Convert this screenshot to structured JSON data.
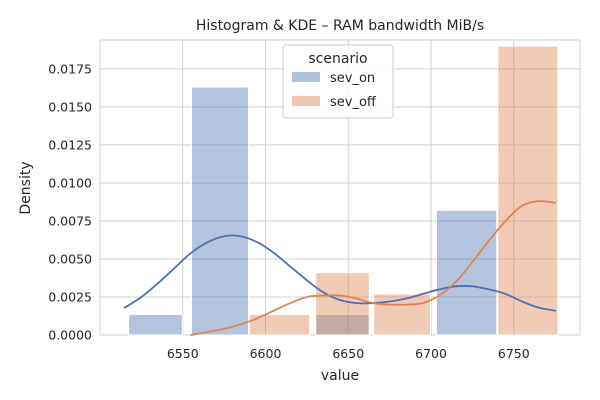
{
  "chart_data": {
    "type": "bar",
    "title": "Histogram & KDE – RAM bandwidth MiB/s",
    "xlabel": "value",
    "ylabel": "Density",
    "xlim": [
      6500,
      6790
    ],
    "ylim": [
      0,
      0.0194
    ],
    "xticks": [
      6550,
      6600,
      6650,
      6700,
      6750
    ],
    "xtick_labels": [
      "6550",
      "6600",
      "6650",
      "6700",
      "6750"
    ],
    "yticks": [
      0,
      0.0025,
      0.005,
      0.0075,
      0.01,
      0.0125,
      0.015,
      0.0175
    ],
    "ytick_labels": [
      "0.0000",
      "0.0025",
      "0.0050",
      "0.0075",
      "0.0100",
      "0.0125",
      "0.0150",
      "0.0175"
    ],
    "grid": true,
    "legend": {
      "title": "scenario",
      "placement": "upper center"
    },
    "bin_edges": [
      6517,
      6550,
      6590,
      6625,
      6663,
      6700,
      6740,
      6777
    ],
    "series": [
      {
        "name": "sev_on",
        "color": "#4C72B0",
        "bins": [
          {
            "x0": 6517,
            "x1": 6550,
            "value": 0.00135
          },
          {
            "x0": 6555,
            "x1": 6590,
            "value": 0.0163
          },
          {
            "x0": 6630,
            "x1": 6663,
            "value": 0.00135
          },
          {
            "x0": 6703,
            "x1": 6740,
            "value": 0.0082
          }
        ],
        "kde": {
          "x": [
            6515,
            6525,
            6535,
            6545,
            6555,
            6565,
            6575,
            6585,
            6595,
            6605,
            6615,
            6625,
            6635,
            6645,
            6655,
            6665,
            6675,
            6685,
            6695,
            6705,
            6715,
            6725,
            6735,
            6745,
            6755,
            6765,
            6775
          ],
          "y": [
            0.0018,
            0.0025,
            0.0034,
            0.0044,
            0.0054,
            0.0061,
            0.0065,
            0.0065,
            0.0061,
            0.0054,
            0.0045,
            0.0036,
            0.0028,
            0.0023,
            0.0021,
            0.0021,
            0.0022,
            0.0024,
            0.0027,
            0.003,
            0.0032,
            0.0032,
            0.003,
            0.0027,
            0.0022,
            0.0018,
            0.0016
          ]
        }
      },
      {
        "name": "sev_off",
        "color": "#DD8452",
        "bins": [
          {
            "x0": 6590,
            "x1": 6627,
            "value": 0.00135
          },
          {
            "x0": 6630,
            "x1": 6663,
            "value": 0.0041
          },
          {
            "x0": 6665,
            "x1": 6700,
            "value": 0.0027
          },
          {
            "x0": 6740,
            "x1": 6777,
            "value": 0.019
          }
        ],
        "kde": {
          "x": [
            6555,
            6565,
            6575,
            6585,
            6595,
            6605,
            6615,
            6625,
            6635,
            6645,
            6655,
            6665,
            6675,
            6685,
            6695,
            6705,
            6715,
            6725,
            6735,
            6745,
            6755,
            6765,
            6775
          ],
          "y": [
            0.0,
            0.0002,
            0.0004,
            0.0007,
            0.0011,
            0.0016,
            0.0021,
            0.0025,
            0.0026,
            0.0026,
            0.0024,
            0.0021,
            0.002,
            0.002,
            0.0021,
            0.0026,
            0.0035,
            0.0048,
            0.0062,
            0.0075,
            0.0085,
            0.0088,
            0.0087
          ]
        }
      }
    ]
  }
}
